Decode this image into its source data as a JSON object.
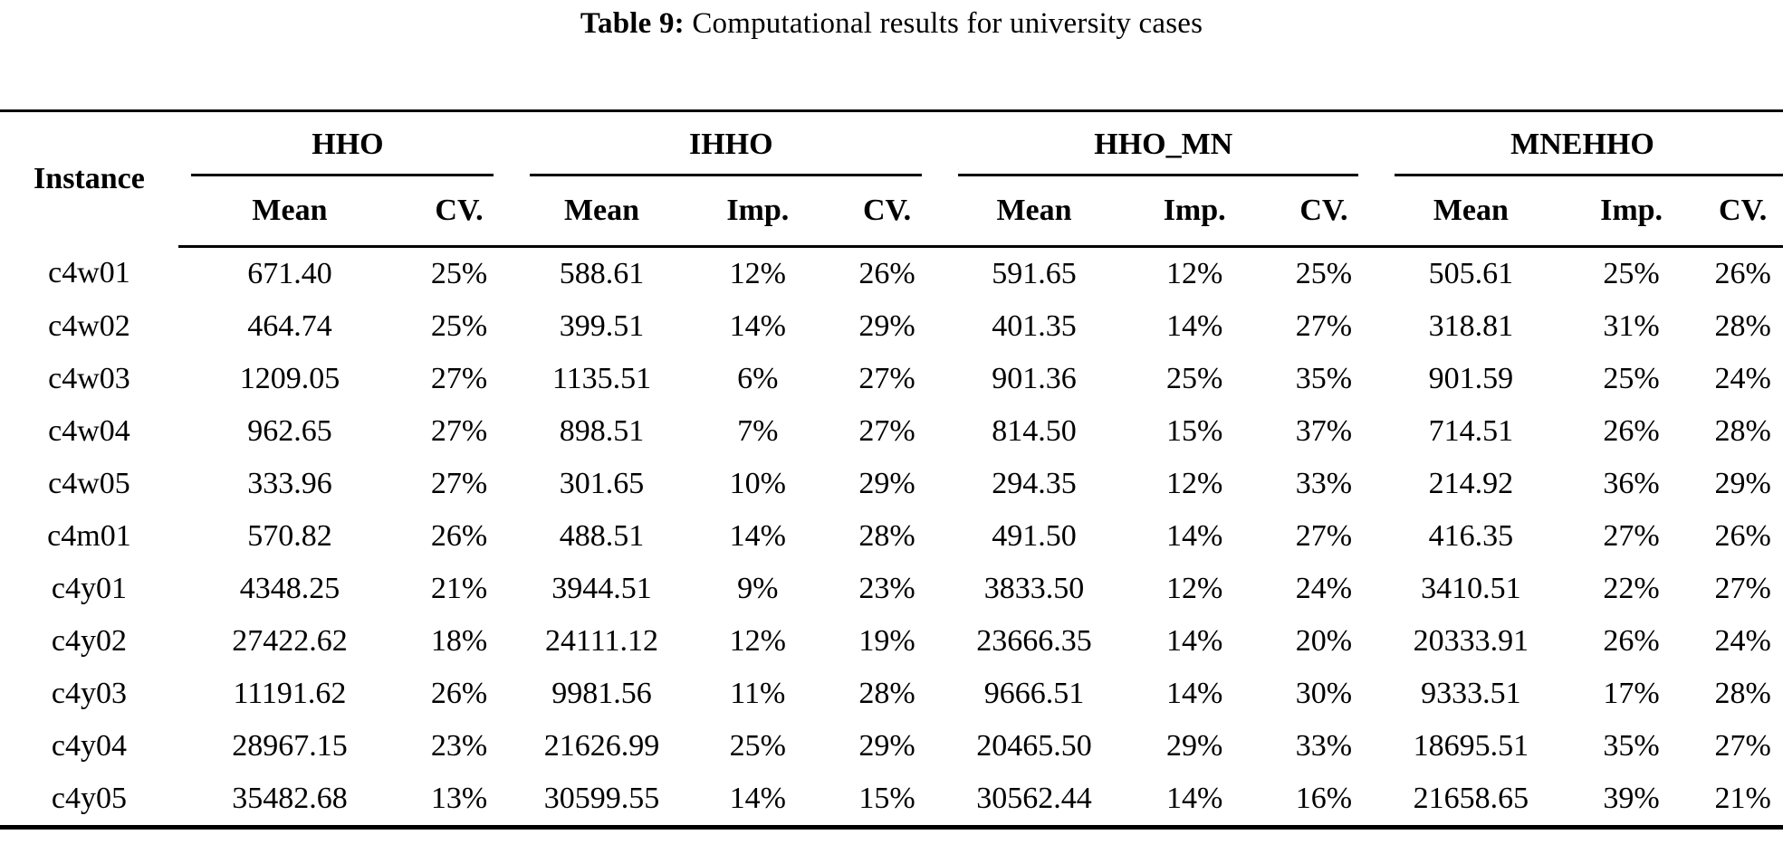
{
  "title": {
    "label": "Table 9:",
    "text": "Computational results for university cases"
  },
  "table": {
    "instance_header": "Instance",
    "groups": [
      {
        "label": "HHO"
      },
      {
        "label": "IHHO"
      },
      {
        "label": "HHO_MN"
      },
      {
        "label": "MNEHHO"
      }
    ],
    "subheaders": [
      "Mean",
      "CV.",
      "Mean",
      "Imp.",
      "CV.",
      "Mean",
      "Imp.",
      "CV.",
      "Mean",
      "Imp.",
      "CV."
    ],
    "rows": [
      [
        "c4w01",
        "671.40",
        "25%",
        "588.61",
        "12%",
        "26%",
        "591.65",
        "12%",
        "25%",
        "505.61",
        "25%",
        "26%"
      ],
      [
        "c4w02",
        "464.74",
        "25%",
        "399.51",
        "14%",
        "29%",
        "401.35",
        "14%",
        "27%",
        "318.81",
        "31%",
        "28%"
      ],
      [
        "c4w03",
        "1209.05",
        "27%",
        "1135.51",
        "6%",
        "27%",
        "901.36",
        "25%",
        "35%",
        "901.59",
        "25%",
        "24%"
      ],
      [
        "c4w04",
        "962.65",
        "27%",
        "898.51",
        "7%",
        "27%",
        "814.50",
        "15%",
        "37%",
        "714.51",
        "26%",
        "28%"
      ],
      [
        "c4w05",
        "333.96",
        "27%",
        "301.65",
        "10%",
        "29%",
        "294.35",
        "12%",
        "33%",
        "214.92",
        "36%",
        "29%"
      ],
      [
        "c4m01",
        "570.82",
        "26%",
        "488.51",
        "14%",
        "28%",
        "491.50",
        "14%",
        "27%",
        "416.35",
        "27%",
        "26%"
      ],
      [
        "c4y01",
        "4348.25",
        "21%",
        "3944.51",
        "9%",
        "23%",
        "3833.50",
        "12%",
        "24%",
        "3410.51",
        "22%",
        "27%"
      ],
      [
        "c4y02",
        "27422.62",
        "18%",
        "24111.12",
        "12%",
        "19%",
        "23666.35",
        "14%",
        "20%",
        "20333.91",
        "26%",
        "24%"
      ],
      [
        "c4y03",
        "11191.62",
        "26%",
        "9981.56",
        "11%",
        "28%",
        "9666.51",
        "14%",
        "30%",
        "9333.51",
        "17%",
        "28%"
      ],
      [
        "c4y04",
        "28967.15",
        "23%",
        "21626.99",
        "25%",
        "29%",
        "20465.50",
        "29%",
        "33%",
        "18695.51",
        "35%",
        "27%"
      ],
      [
        "c4y05",
        "35482.68",
        "13%",
        "30599.55",
        "14%",
        "15%",
        "30562.44",
        "14%",
        "16%",
        "21658.65",
        "39%",
        "21%"
      ]
    ]
  }
}
